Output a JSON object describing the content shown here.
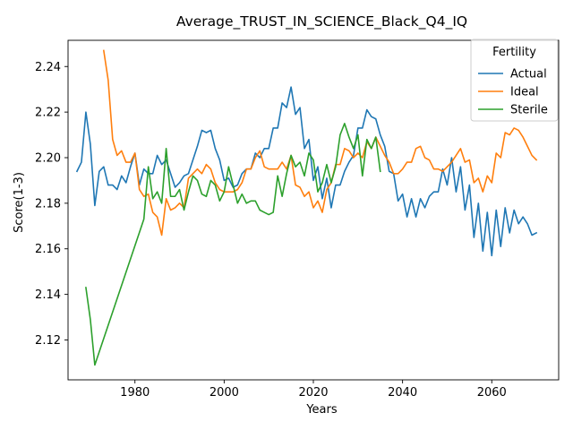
{
  "chart_data": {
    "type": "line",
    "title": "Average_TRUST_IN_SCIENCE_Black_Q4_IQ",
    "xlabel": "Years",
    "ylabel": "Score(1-3)",
    "xlim": [
      1965,
      2075
    ],
    "ylim": [
      2.1025,
      2.2515
    ],
    "xticks": [
      1980,
      2000,
      2020,
      2040,
      2060
    ],
    "yticks": [
      2.12,
      2.14,
      2.16,
      2.18,
      2.2,
      2.22,
      2.24
    ],
    "ytick_labels": [
      "2.12",
      "2.14",
      "2.16",
      "2.18",
      "2.20",
      "2.22",
      "2.24"
    ],
    "xtick_labels": [
      "1980",
      "2000",
      "2020",
      "2040",
      "2060"
    ],
    "grid": false,
    "legend": {
      "title": "Fertility",
      "placement": "top-right"
    },
    "series": [
      {
        "name": "Actual",
        "color": "#1f77b4",
        "points": [
          [
            1967,
            2.194
          ],
          [
            1968,
            2.198
          ],
          [
            1969,
            2.22
          ],
          [
            1970,
            2.206
          ],
          [
            1971,
            2.179
          ],
          [
            1972,
            2.194
          ],
          [
            1973,
            2.196
          ],
          [
            1974,
            2.188
          ],
          [
            1975,
            2.188
          ],
          [
            1976,
            2.186
          ],
          [
            1977,
            2.192
          ],
          [
            1978,
            2.189
          ],
          [
            1979,
            2.196
          ],
          [
            1980,
            2.202
          ],
          [
            1981,
            2.188
          ],
          [
            1982,
            2.195
          ],
          [
            1983,
            2.193
          ],
          [
            1984,
            2.193
          ],
          [
            1985,
            2.201
          ],
          [
            1986,
            2.197
          ],
          [
            1987,
            2.199
          ],
          [
            1988,
            2.193
          ],
          [
            1989,
            2.187
          ],
          [
            1990,
            2.189
          ],
          [
            1991,
            2.192
          ],
          [
            1992,
            2.193
          ],
          [
            1993,
            2.199
          ],
          [
            1994,
            2.205
          ],
          [
            1995,
            2.212
          ],
          [
            1996,
            2.211
          ],
          [
            1997,
            2.212
          ],
          [
            1998,
            2.204
          ],
          [
            1999,
            2.199
          ],
          [
            2000,
            2.19
          ],
          [
            2001,
            2.191
          ],
          [
            2002,
            2.187
          ],
          [
            2003,
            2.188
          ],
          [
            2004,
            2.193
          ],
          [
            2005,
            2.195
          ],
          [
            2006,
            2.195
          ],
          [
            2007,
            2.202
          ],
          [
            2008,
            2.2
          ],
          [
            2009,
            2.204
          ],
          [
            2010,
            2.204
          ],
          [
            2011,
            2.213
          ],
          [
            2012,
            2.213
          ],
          [
            2013,
            2.224
          ],
          [
            2014,
            2.222
          ],
          [
            2015,
            2.231
          ],
          [
            2016,
            2.219
          ],
          [
            2017,
            2.222
          ],
          [
            2018,
            2.204
          ],
          [
            2019,
            2.208
          ],
          [
            2020,
            2.19
          ],
          [
            2021,
            2.196
          ],
          [
            2022,
            2.182
          ],
          [
            2023,
            2.191
          ],
          [
            2024,
            2.178
          ],
          [
            2025,
            2.188
          ],
          [
            2026,
            2.188
          ],
          [
            2027,
            2.194
          ],
          [
            2028,
            2.198
          ],
          [
            2029,
            2.201
          ],
          [
            2030,
            2.213
          ],
          [
            2031,
            2.213
          ],
          [
            2032,
            2.221
          ],
          [
            2033,
            2.218
          ],
          [
            2034,
            2.217
          ],
          [
            2035,
            2.21
          ],
          [
            2036,
            2.205
          ],
          [
            2037,
            2.194
          ],
          [
            2038,
            2.193
          ],
          [
            2039,
            2.181
          ],
          [
            2040,
            2.184
          ],
          [
            2041,
            2.174
          ],
          [
            2042,
            2.182
          ],
          [
            2043,
            2.174
          ],
          [
            2044,
            2.182
          ],
          [
            2045,
            2.178
          ],
          [
            2046,
            2.183
          ],
          [
            2047,
            2.185
          ],
          [
            2048,
            2.185
          ],
          [
            2049,
            2.195
          ],
          [
            2050,
            2.188
          ],
          [
            2051,
            2.2
          ],
          [
            2052,
            2.185
          ],
          [
            2053,
            2.196
          ],
          [
            2054,
            2.177
          ],
          [
            2055,
            2.188
          ],
          [
            2056,
            2.165
          ],
          [
            2057,
            2.18
          ],
          [
            2058,
            2.159
          ],
          [
            2059,
            2.176
          ],
          [
            2060,
            2.157
          ],
          [
            2061,
            2.177
          ],
          [
            2062,
            2.161
          ],
          [
            2063,
            2.178
          ],
          [
            2064,
            2.167
          ],
          [
            2065,
            2.177
          ],
          [
            2066,
            2.171
          ],
          [
            2067,
            2.174
          ],
          [
            2068,
            2.171
          ],
          [
            2069,
            2.166
          ],
          [
            2070,
            2.167
          ]
        ]
      },
      {
        "name": "Ideal",
        "color": "#ff7f0e",
        "points": [
          [
            1973,
            2.247
          ],
          [
            1974,
            2.234
          ],
          [
            1975,
            2.208
          ],
          [
            1976,
            2.201
          ],
          [
            1977,
            2.203
          ],
          [
            1978,
            2.198
          ],
          [
            1979,
            2.198
          ],
          [
            1980,
            2.202
          ],
          [
            1981,
            2.186
          ],
          [
            1982,
            2.183
          ],
          [
            1983,
            2.184
          ],
          [
            1984,
            2.176
          ],
          [
            1985,
            2.174
          ],
          [
            1986,
            2.166
          ],
          [
            1987,
            2.182
          ],
          [
            1988,
            2.177
          ],
          [
            1989,
            2.178
          ],
          [
            1990,
            2.18
          ],
          [
            1991,
            2.178
          ],
          [
            1992,
            2.191
          ],
          [
            1993,
            2.193
          ],
          [
            1994,
            2.195
          ],
          [
            1995,
            2.193
          ],
          [
            1996,
            2.197
          ],
          [
            1997,
            2.195
          ],
          [
            1998,
            2.189
          ],
          [
            1999,
            2.186
          ],
          [
            2000,
            2.185
          ],
          [
            2001,
            2.185
          ],
          [
            2002,
            2.185
          ],
          [
            2003,
            2.186
          ],
          [
            2004,
            2.189
          ],
          [
            2005,
            2.195
          ],
          [
            2006,
            2.195
          ],
          [
            2007,
            2.2
          ],
          [
            2008,
            2.203
          ],
          [
            2009,
            2.196
          ],
          [
            2010,
            2.195
          ],
          [
            2011,
            2.195
          ],
          [
            2012,
            2.195
          ],
          [
            2013,
            2.198
          ],
          [
            2014,
            2.195
          ],
          [
            2015,
            2.201
          ],
          [
            2016,
            2.188
          ],
          [
            2017,
            2.187
          ],
          [
            2018,
            2.183
          ],
          [
            2019,
            2.185
          ],
          [
            2020,
            2.178
          ],
          [
            2021,
            2.181
          ],
          [
            2022,
            2.176
          ],
          [
            2023,
            2.186
          ],
          [
            2024,
            2.189
          ],
          [
            2025,
            2.197
          ],
          [
            2026,
            2.197
          ],
          [
            2027,
            2.204
          ],
          [
            2028,
            2.203
          ],
          [
            2029,
            2.2
          ],
          [
            2030,
            2.202
          ],
          [
            2031,
            2.2
          ],
          [
            2032,
            2.207
          ],
          [
            2033,
            2.204
          ],
          [
            2034,
            2.209
          ],
          [
            2035,
            2.205
          ],
          [
            2036,
            2.201
          ],
          [
            2037,
            2.198
          ],
          [
            2038,
            2.193
          ],
          [
            2039,
            2.193
          ],
          [
            2040,
            2.195
          ],
          [
            2041,
            2.198
          ],
          [
            2042,
            2.198
          ],
          [
            2043,
            2.204
          ],
          [
            2044,
            2.205
          ],
          [
            2045,
            2.2
          ],
          [
            2046,
            2.199
          ],
          [
            2047,
            2.195
          ],
          [
            2048,
            2.195
          ],
          [
            2049,
            2.194
          ],
          [
            2050,
            2.196
          ],
          [
            2051,
            2.198
          ],
          [
            2052,
            2.201
          ],
          [
            2053,
            2.204
          ],
          [
            2054,
            2.198
          ],
          [
            2055,
            2.199
          ],
          [
            2056,
            2.189
          ],
          [
            2057,
            2.191
          ],
          [
            2058,
            2.185
          ],
          [
            2059,
            2.192
          ],
          [
            2060,
            2.189
          ],
          [
            2061,
            2.202
          ],
          [
            2062,
            2.2
          ],
          [
            2063,
            2.211
          ],
          [
            2064,
            2.21
          ],
          [
            2065,
            2.213
          ],
          [
            2066,
            2.212
          ],
          [
            2067,
            2.209
          ],
          [
            2068,
            2.205
          ],
          [
            2069,
            2.201
          ],
          [
            2070,
            2.199
          ]
        ]
      },
      {
        "name": "Sterile",
        "color": "#2ca02c",
        "points": [
          [
            1969,
            2.143
          ],
          [
            1970,
            2.129
          ],
          [
            1971,
            2.109
          ],
          [
            1982,
            2.173
          ],
          [
            1983,
            2.196
          ],
          [
            1984,
            2.182
          ],
          [
            1985,
            2.185
          ],
          [
            1986,
            2.18
          ],
          [
            1987,
            2.204
          ],
          [
            1988,
            2.183
          ],
          [
            1989,
            2.183
          ],
          [
            1990,
            2.186
          ],
          [
            1991,
            2.177
          ],
          [
            1992,
            2.185
          ],
          [
            1993,
            2.192
          ],
          [
            1994,
            2.19
          ],
          [
            1995,
            2.184
          ],
          [
            1996,
            2.183
          ],
          [
            1997,
            2.19
          ],
          [
            1998,
            2.188
          ],
          [
            1999,
            2.181
          ],
          [
            2000,
            2.185
          ],
          [
            2001,
            2.196
          ],
          [
            2002,
            2.188
          ],
          [
            2003,
            2.18
          ],
          [
            2004,
            2.184
          ],
          [
            2005,
            2.18
          ],
          [
            2006,
            2.181
          ],
          [
            2007,
            2.181
          ],
          [
            2008,
            2.177
          ],
          [
            2009,
            2.176
          ],
          [
            2010,
            2.175
          ],
          [
            2011,
            2.176
          ],
          [
            2012,
            2.192
          ],
          [
            2013,
            2.183
          ],
          [
            2014,
            2.193
          ],
          [
            2015,
            2.201
          ],
          [
            2016,
            2.196
          ],
          [
            2017,
            2.198
          ],
          [
            2018,
            2.192
          ],
          [
            2019,
            2.202
          ],
          [
            2020,
            2.199
          ],
          [
            2021,
            2.185
          ],
          [
            2022,
            2.189
          ],
          [
            2023,
            2.197
          ],
          [
            2024,
            2.189
          ],
          [
            2025,
            2.196
          ],
          [
            2026,
            2.21
          ],
          [
            2027,
            2.215
          ],
          [
            2028,
            2.209
          ],
          [
            2029,
            2.204
          ],
          [
            2030,
            2.21
          ],
          [
            2031,
            2.192
          ],
          [
            2032,
            2.208
          ],
          [
            2033,
            2.204
          ],
          [
            2034,
            2.209
          ],
          [
            2035,
            2.194
          ]
        ]
      }
    ]
  }
}
